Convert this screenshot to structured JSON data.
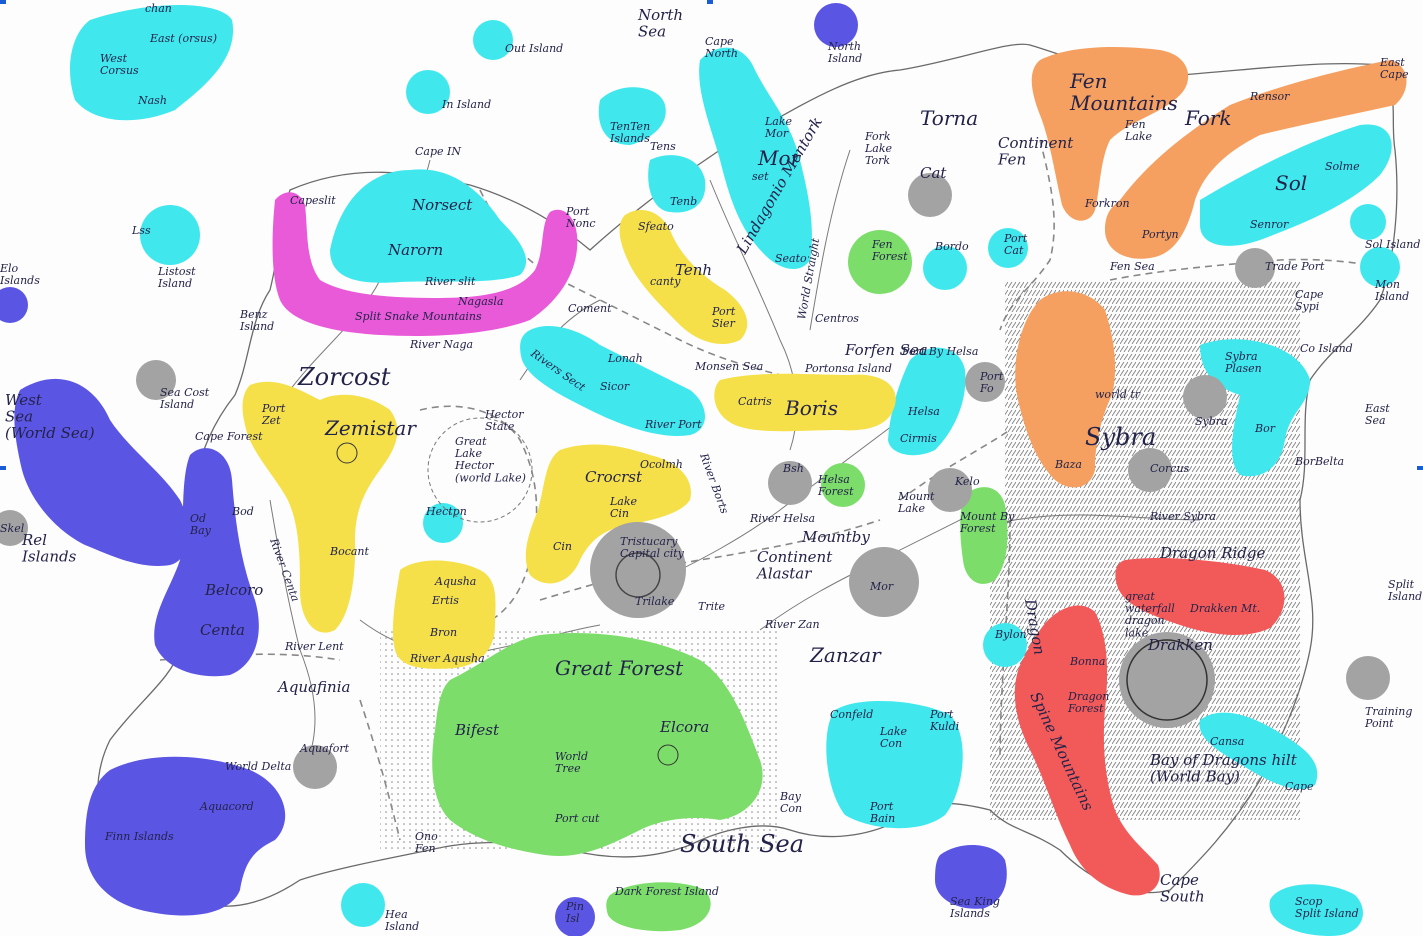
{
  "colors": {
    "cyan": "#40e8ee",
    "blue": "#5b55e3",
    "yellow": "#f5e04a",
    "magenta": "#e85ad8",
    "orange": "#f5a060",
    "green": "#7ddd6a",
    "gray": "#a3a3a3",
    "red": "#f25a5a"
  },
  "labels": {
    "north_sea": "North\nSea",
    "cape_north": "Cape\nNorth",
    "north_island": "North\nIsland",
    "out_island": "Out Island",
    "in_island": "In Island",
    "chan": "chan",
    "east_corsus": "East (orsus)",
    "west_corsus": "West\nCorsus",
    "nash": "Nash",
    "cape_in": "Cape IN",
    "norsect": "Norsect",
    "narorn": "Narorn",
    "river_slit": "River slit",
    "capeslit": "Capeslit",
    "port_nonc": "Port\nNonc",
    "nagasla": "Nagasla",
    "split_snake_mountains": "Split Snake Mountains",
    "river_naga": "River Naga",
    "lss": "Lss",
    "listost_island": "Listost\nIsland",
    "elo_islands": "Elo\nIslands",
    "benz_island": "Benz\nIsland",
    "tenten_islands": "TenTen\nIslands",
    "tens": "Tens",
    "tenb": "Tenb",
    "lake_mor": "Lake\nMor",
    "mor": "Mor",
    "set": "set",
    "lindagonio_mentork": "Lindagonio Mentork",
    "seato": "Seato",
    "world_straight": "World Straight",
    "torna": "Torna",
    "fork_lake_tork": "Fork\nLake\nTork",
    "continent_fen": "Continent\nFen",
    "cat": "Cat",
    "fen_mountains": "Fen\nMountains",
    "fen_lake": "Fen\nLake",
    "fork": "Fork",
    "rensor": "Rensor",
    "east_cape": "East\nCape",
    "sol": "Sol",
    "solme": "Solme",
    "forkron": "Forkron",
    "portyn": "Portyn",
    "senror": "Senror",
    "fen_sea": "Fen Sea",
    "trade_port": "Trade Port",
    "sol_island": "Sol Island",
    "mon_island": "Mon\nIsland",
    "cape_sypi": "Cape\nSypi",
    "co_island": "Co Island",
    "tenh": "Tenh",
    "canty": "canty",
    "sfeato": "Sfeato",
    "port_sier": "Port\nSier",
    "coment": "Coment",
    "fen_forest": "Fen\nForest",
    "bordo": "Bordo",
    "port_cat": "Port\nCat",
    "centros": "Centros",
    "forfen_sea": "Forfen Sea",
    "port_by_helsa": "Port By Helsa",
    "sea_cost_island": "Sea Cost\nIsland",
    "west_sea": "West\nSea\n(World Sea)",
    "zorcost": "Zorcost",
    "port_zet": "Port\nZet",
    "zemistar": "Zemistar",
    "cape_forest": "Cape Forest",
    "rivers_sect": "Rivers Sect",
    "lonah": "Lonah",
    "sicor": "Sicor",
    "monsen_sea": "Monsen Sea",
    "portonsa_island": "Portonsa Island",
    "catris": "Catris",
    "boris": "Boris",
    "helsa": "Helsa",
    "cirmis": "Cirmis",
    "port_fo": "Port\nFo",
    "sybra_plasen": "Sybra\nPlasen",
    "east_sea": "East\nSea",
    "hector_state": "Hector\nState",
    "great_lake_hector": "Great\nLake\nHector\n(world Lake)",
    "hectpn": "Hectpn",
    "river_port": "River Port",
    "crocrst": "Crocrst",
    "ocolmh": "Ocolmh",
    "lake_cin": "Lake\nCin",
    "cin": "Cin",
    "river_borts": "River Borts",
    "bsh": "Bsh",
    "helsa_forest": "Helsa\nForest",
    "river_helsa": "River Helsa",
    "mount_lake": "Mount\nLake",
    "kelo": "Kelo",
    "mount_by_forest": "Mount By\nForest",
    "world_tree_hill": "world tr",
    "sybra": "Sybra",
    "sybra_town": "Sybra",
    "baza": "Baza",
    "corcus": "Corcus",
    "bor": "Bor",
    "borbelta": "BorBelta",
    "river_sybra": "River Sybra",
    "dragon_ridge": "Dragon Ridge",
    "skel": "Skel",
    "rel_islands": "Rel\nIslands",
    "od_bay": "Od\nBay",
    "bod": "Bod",
    "belcoro": "Belcoro",
    "centa": "Centa",
    "river_centa": "River Centa",
    "bocant": "Bocant",
    "river_lent": "River Lent",
    "aqusha": "Aqusha",
    "ertis": "Ertis",
    "bron": "Bron",
    "river_aqusha": "River Aqusha",
    "tristucany": "Tristucary\nCapital city",
    "trilake": "Trilake",
    "trite": "Trite",
    "mountby": "Mountby",
    "continent_alastar": "Continent\nAlastar",
    "mor_gray": "Mor",
    "split_island": "Split\nIsland",
    "river_zan": "River Zan",
    "zanzar": "Zanzar",
    "dragon_spine_label": "Dragon",
    "great_forest": "Great Forest",
    "bifest": "Bifest",
    "world_tree": "World\nTree",
    "elcora": "Elcora",
    "port_cut": "Port cut",
    "great_waterfall": "great\nwaterfall\ndragon\nlake",
    "drakken_mt": "Drakken Mt.",
    "drakken": "Drakken",
    "bylon": "Bylon",
    "bonna": "Bonna",
    "dragon_forest": "Dragon\nForest",
    "spine_mountains": "Spine Mountains",
    "training_point": "Training\nPoint",
    "aquafinia": "Aquafinia",
    "aquafort": "Aquafort",
    "world_delta": "World Delta",
    "finn_islands": "Finn Islands",
    "aquacord": "Aquacord",
    "ono_fen": "Ono\nFen",
    "bay_con": "Bay\nCon",
    "south_sea": "South Sea",
    "confeld": "Confeld",
    "lake_con": "Lake\nCon",
    "port_kuldi": "Port\nKuldi",
    "port_bain": "Port\nBain",
    "bay_of_dragons": "Bay of Dragons hilt\n(World Bay)",
    "cansa": "Cansa",
    "cape_dragon": "Cape",
    "cape_south": "Cape\nSouth",
    "sea_king_islands": "Sea King\nIslands",
    "hea_island": "Hea\nIsland",
    "pin_island": "Pin\nIsl",
    "dark_forest_island": "Dark Forest Island",
    "scop_split_island": "Scop\nSplit Island"
  }
}
